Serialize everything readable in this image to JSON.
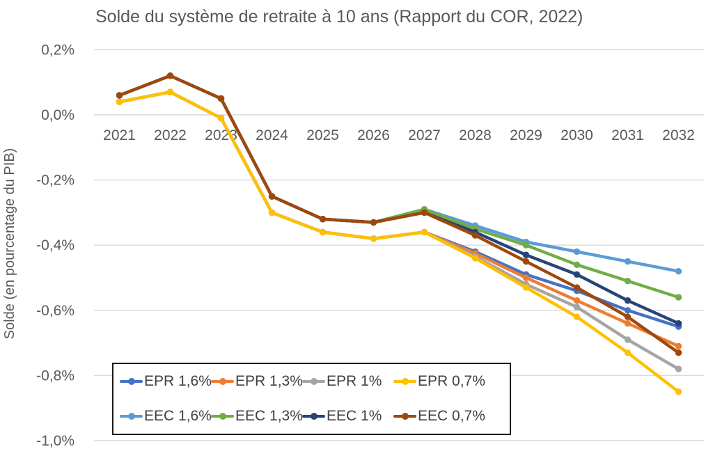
{
  "chart_data": {
    "type": "line",
    "title": "Solde du système de retraite à 10 ans (Rapport du COR, 2022)",
    "ylabel": "Solde (en pourcentage du PIB)",
    "xlabel": "",
    "categories": [
      "2021",
      "2022",
      "2023",
      "2024",
      "2025",
      "2026",
      "2027",
      "2028",
      "2029",
      "2030",
      "2031",
      "2032"
    ],
    "y_ticks": [
      {
        "label": "0,2%",
        "value": 0.2
      },
      {
        "label": "0,0%",
        "value": 0.0
      },
      {
        "label": "-0,2%",
        "value": -0.2
      },
      {
        "label": "-0,4%",
        "value": -0.4
      },
      {
        "label": "-0,6%",
        "value": -0.6
      },
      {
        "label": "-0,8%",
        "value": -0.8
      },
      {
        "label": "-1,0%",
        "value": -1.0
      }
    ],
    "ylim": [
      -1.0,
      0.2
    ],
    "grid": true,
    "legend_position": "bottom-left-box",
    "grid_color": "#d9d9d9",
    "series": [
      {
        "name": "EPR 1,6%",
        "color": "#4472C4",
        "values": [
          0.04,
          0.07,
          -0.01,
          -0.3,
          -0.36,
          -0.38,
          -0.36,
          -0.42,
          -0.49,
          -0.54,
          -0.6,
          -0.65
        ]
      },
      {
        "name": "EPR 1,3%",
        "color": "#ED7D31",
        "values": [
          0.04,
          0.07,
          -0.01,
          -0.3,
          -0.36,
          -0.38,
          -0.36,
          -0.425,
          -0.5,
          -0.57,
          -0.64,
          -0.71
        ]
      },
      {
        "name": "EPR 1%",
        "color": "#A5A5A5",
        "values": [
          0.04,
          0.07,
          -0.01,
          -0.3,
          -0.36,
          -0.38,
          -0.36,
          -0.435,
          -0.52,
          -0.59,
          -0.69,
          -0.78
        ]
      },
      {
        "name": "EPR 0,7%",
        "color": "#FFC000",
        "values": [
          0.04,
          0.07,
          -0.01,
          -0.3,
          -0.36,
          -0.38,
          -0.36,
          -0.44,
          -0.53,
          -0.62,
          -0.73,
          -0.85
        ]
      },
      {
        "name": "EEC 1,6%",
        "color": "#5B9BD5",
        "values": [
          0.06,
          0.12,
          0.05,
          -0.25,
          -0.32,
          -0.33,
          -0.29,
          -0.34,
          -0.39,
          -0.42,
          -0.45,
          -0.48
        ]
      },
      {
        "name": "EEC 1,3%",
        "color": "#70AD47",
        "values": [
          0.06,
          0.12,
          0.05,
          -0.25,
          -0.32,
          -0.33,
          -0.29,
          -0.35,
          -0.4,
          -0.46,
          -0.51,
          -0.56
        ]
      },
      {
        "name": "EEC 1%",
        "color": "#264478",
        "values": [
          0.06,
          0.12,
          0.05,
          -0.25,
          -0.32,
          -0.33,
          -0.3,
          -0.36,
          -0.43,
          -0.49,
          -0.57,
          -0.64
        ]
      },
      {
        "name": "EEC 0,7%",
        "color": "#9E480E",
        "values": [
          0.06,
          0.12,
          0.05,
          -0.25,
          -0.32,
          -0.33,
          -0.3,
          -0.37,
          -0.45,
          -0.53,
          -0.62,
          -0.73
        ]
      }
    ]
  }
}
